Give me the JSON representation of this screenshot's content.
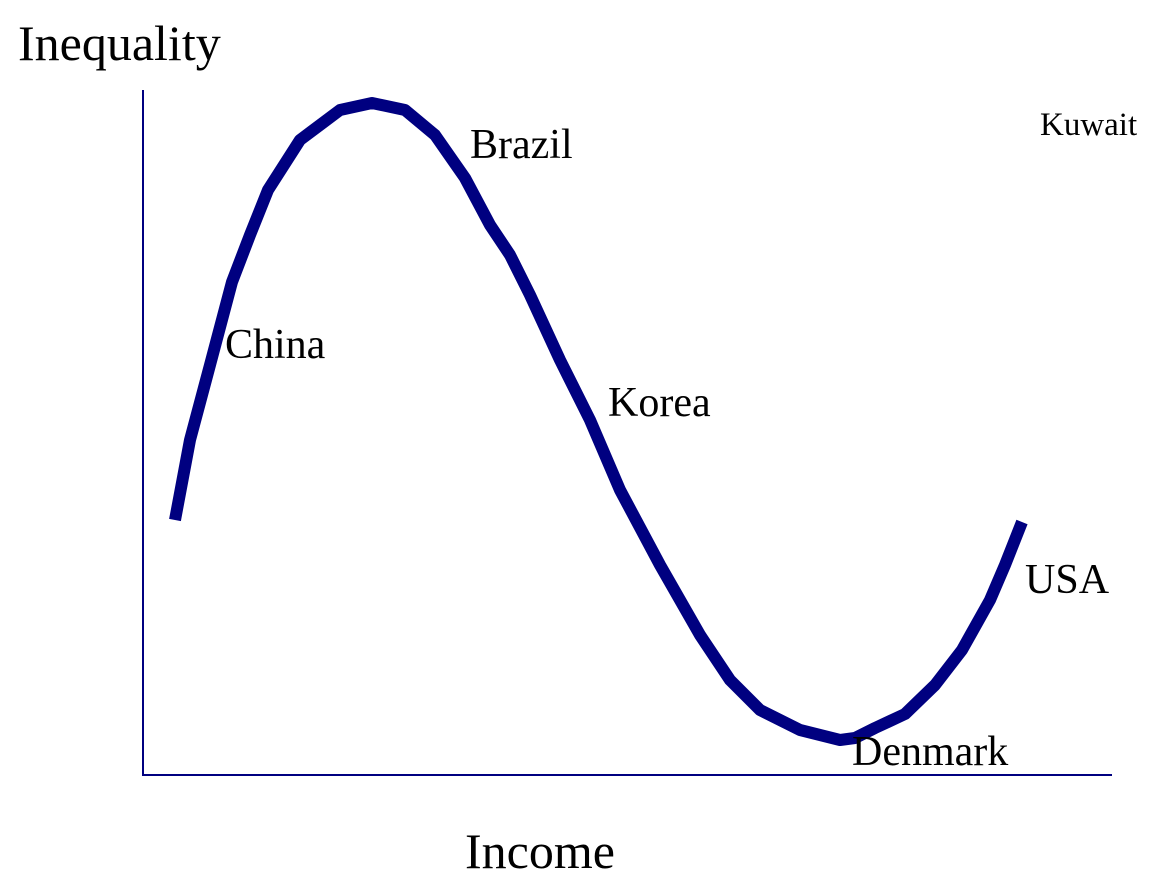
{
  "y_axis_label": "Inequality",
  "x_axis_label": "Income",
  "labels": {
    "china": "China",
    "brazil": "Brazil",
    "korea": "Korea",
    "usa": "USA",
    "denmark": "Denmark",
    "kuwait": "Kuwait"
  }
}
